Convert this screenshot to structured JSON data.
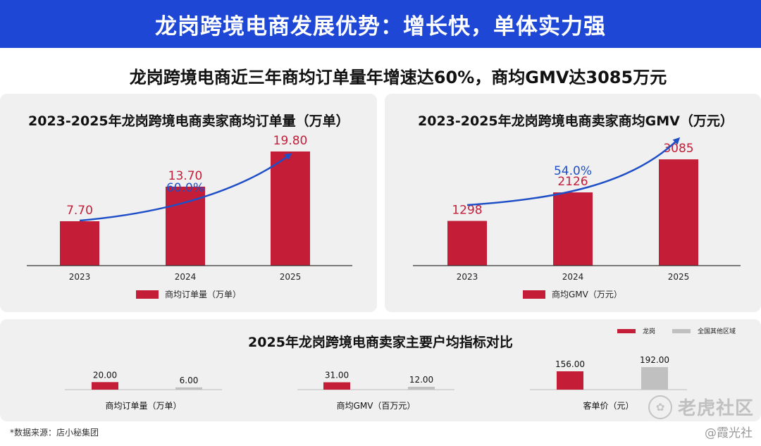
{
  "header": {
    "title": "龙岗跨境电商发展优势：增长快，单体实力强",
    "subtitle": "龙岗跨境电商近三年商均订单量年增速达60%，商均GMV达3085万元"
  },
  "colors": {
    "banner": "#1f47d6",
    "bar": "#c41d38",
    "compare_bar": "#c0c0c0",
    "arrow": "#1f4fc7",
    "growth_label": "#1f4fc7",
    "value_label": "#c41d38"
  },
  "chart_data": [
    {
      "type": "bar",
      "title": "2023-2025年龙岗跨境电商卖家商均订单量（万单）",
      "categories": [
        "2023",
        "2024",
        "2025"
      ],
      "values": [
        7.7,
        13.7,
        19.8
      ],
      "value_labels": [
        "7.70",
        "13.70",
        "19.80"
      ],
      "series_name": "商均订单量（万单）",
      "growth_label": "60.0%",
      "ylim": [
        0,
        22
      ],
      "legend": "bottom-center"
    },
    {
      "type": "bar",
      "title": "2023-2025年龙岗跨境电商卖家商均GMV（万元）",
      "categories": [
        "2023",
        "2024",
        "2025"
      ],
      "values": [
        1298,
        2126,
        3085
      ],
      "value_labels": [
        "1298",
        "2126",
        "3085"
      ],
      "series_name": "商均GMV（万元）",
      "growth_label": "54.0%",
      "ylim": [
        0,
        3600
      ],
      "legend": "bottom-center"
    },
    {
      "type": "bar",
      "title": "2025年龙岗跨境电商卖家主要户均指标对比",
      "legend": "top-right",
      "series": [
        {
          "name": "龙岗",
          "color": "#c41d38"
        },
        {
          "name": "全国其他区域",
          "color": "#c0c0c0"
        }
      ],
      "groups": [
        {
          "label": "商均订单量（万单）",
          "values": [
            20.0,
            6.0
          ],
          "value_labels": [
            "20.00",
            "6.00"
          ],
          "ylim": [
            0,
            60
          ]
        },
        {
          "label": "商均GMV（百万元）",
          "values": [
            31.0,
            12.0
          ],
          "value_labels": [
            "31.00",
            "12.00"
          ],
          "ylim": [
            0,
            95
          ]
        },
        {
          "label": "客单价（元）",
          "values": [
            156.0,
            192.0
          ],
          "value_labels": [
            "156.00",
            "192.00"
          ],
          "ylim": [
            0,
            192
          ]
        }
      ]
    }
  ],
  "footnote": "*数据来源：店小秘集团",
  "watermark": {
    "primary": "老虎社区",
    "secondary": "@霞光社",
    "icon": "tiger-paw-icon"
  }
}
